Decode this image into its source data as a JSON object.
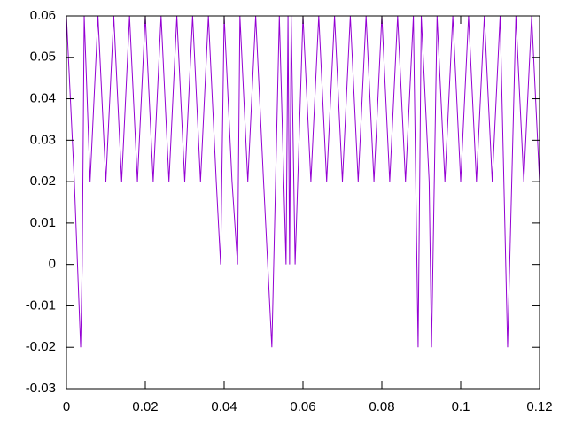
{
  "chart_data": {
    "type": "line",
    "x": [
      0,
      0.002,
      0.0036,
      0.004,
      0.0045,
      0.006,
      0.008,
      0.01,
      0.012,
      0.014,
      0.016,
      0.018,
      0.02,
      0.022,
      0.024,
      0.026,
      0.028,
      0.03,
      0.032,
      0.034,
      0.036,
      0.038,
      0.0391,
      0.04,
      0.042,
      0.0434,
      0.044,
      0.046,
      0.048,
      0.05,
      0.0521,
      0.054,
      0.0557,
      0.0562,
      0.0566,
      0.057,
      0.058,
      0.06,
      0.062,
      0.064,
      0.066,
      0.068,
      0.07,
      0.072,
      0.074,
      0.076,
      0.078,
      0.08,
      0.082,
      0.084,
      0.086,
      0.088,
      0.0892,
      0.09,
      0.092,
      0.0926,
      0.094,
      0.096,
      0.098,
      0.1,
      0.102,
      0.104,
      0.106,
      0.108,
      0.11,
      0.1119,
      0.114,
      0.116,
      0.118,
      0.12
    ],
    "series": [
      {
        "color": "#9400d3",
        "values": [
          0.06,
          0.02,
          -0.02,
          0,
          0.06,
          0.02,
          0.06,
          0.02,
          0.06,
          0.02,
          0.06,
          0.02,
          0.06,
          0.02,
          0.06,
          0.02,
          0.06,
          0.02,
          0.06,
          0.02,
          0.06,
          0.02,
          0,
          0.06,
          0.02,
          0,
          0.06,
          0.02,
          0.06,
          0.02,
          -0.02,
          0.06,
          0,
          0.06,
          0,
          0.06,
          0,
          0.06,
          0.02,
          0.06,
          0.02,
          0.06,
          0.02,
          0.06,
          0.02,
          0.06,
          0.02,
          0.06,
          0.02,
          0.06,
          0.02,
          0.06,
          -0.02,
          0.06,
          0.02,
          -0.02,
          0.06,
          0.02,
          0.06,
          0.02,
          0.06,
          0.02,
          0.06,
          0.02,
          0.06,
          -0.02,
          0.06,
          0.02,
          0.06,
          0.02
        ]
      }
    ],
    "xlim": [
      0,
      0.12
    ],
    "xticks": [
      0,
      0.02,
      0.04,
      0.06,
      0.08,
      0.1,
      0.12
    ],
    "ylim": [
      -0.03,
      0.06
    ],
    "yticks": [
      -0.03,
      -0.02,
      -0.01,
      0,
      0.01,
      0.02,
      0.03,
      0.04,
      0.05,
      0.06
    ]
  }
}
